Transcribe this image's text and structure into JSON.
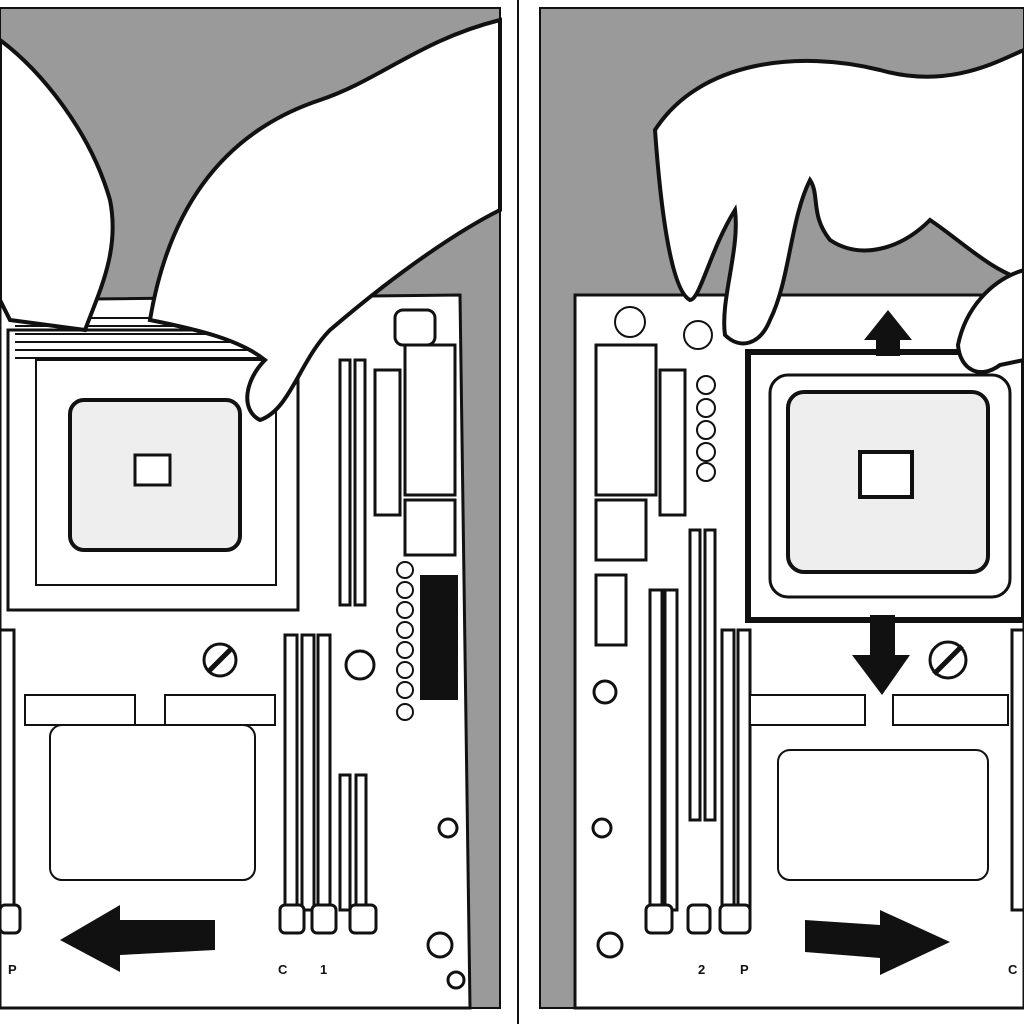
{
  "panels": [
    {
      "id": "left",
      "labels": {
        "bottom_left": "P",
        "bottom_mid": "C",
        "bottom_right": "1"
      }
    },
    {
      "id": "right",
      "labels": {
        "bottom_left": "2",
        "bottom_mid": "P",
        "bottom_right": "C"
      }
    }
  ],
  "colors": {
    "background": "#9a9a9a",
    "board": "#ffffff",
    "line": "#111111",
    "chip": "#eeeeee"
  }
}
